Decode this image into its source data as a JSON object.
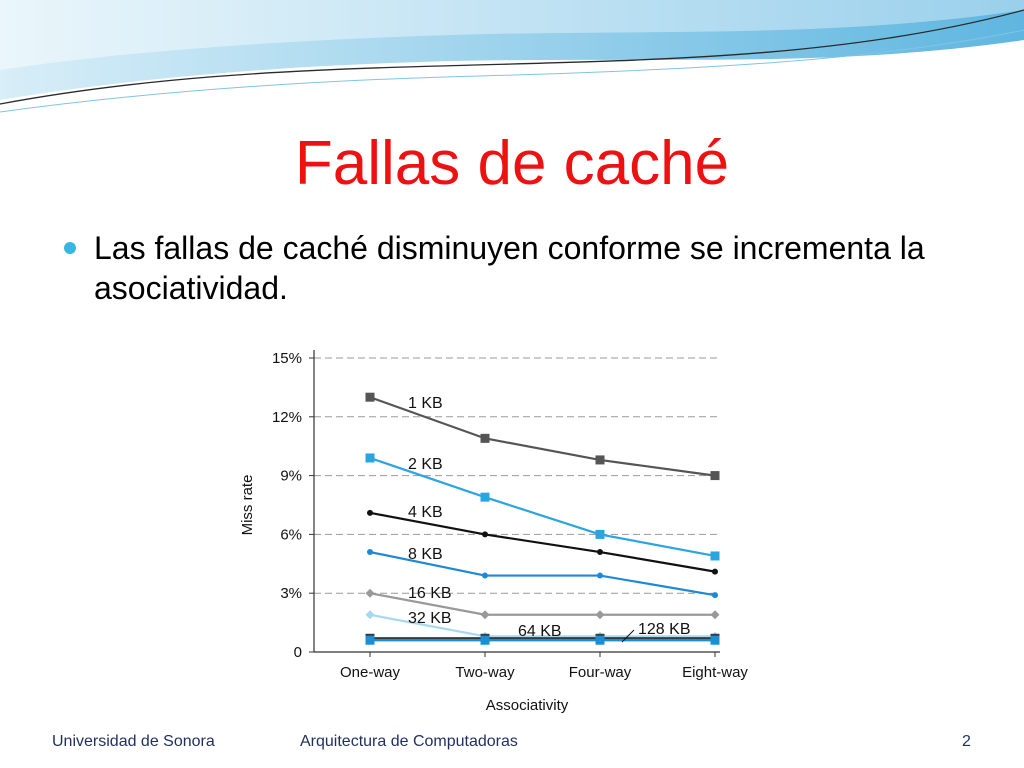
{
  "slide": {
    "title": "Fallas de caché",
    "bullet": "Las fallas de caché disminuyen conforme se incrementa la asociatividad.",
    "footer_left": "Universidad de Sonora",
    "footer_center": "Arquitectura de Computadoras",
    "page_number": "2"
  },
  "colors": {
    "title": "#ee1111",
    "bullet": "#36b6e2",
    "footer": "#1f2f5f"
  },
  "chart_data": {
    "type": "line",
    "xlabel": "Associativity",
    "ylabel": "Miss rate",
    "categories": [
      "One-way",
      "Two-way",
      "Four-way",
      "Eight-way"
    ],
    "ylim": [
      0,
      15
    ],
    "yticks": [
      "0",
      "3%",
      "6%",
      "9%",
      "12%",
      "15%"
    ],
    "grid": "horizontal-dashed",
    "series": [
      {
        "name": "1 KB",
        "values": [
          13.0,
          10.9,
          9.8,
          9.0
        ],
        "color": "#555555",
        "marker": "square"
      },
      {
        "name": "2 KB",
        "values": [
          9.9,
          7.9,
          6.0,
          4.9
        ],
        "color": "#2aa5e0",
        "marker": "square"
      },
      {
        "name": "4 KB",
        "values": [
          7.1,
          6.0,
          5.1,
          4.1
        ],
        "color": "#111111",
        "marker": "circle"
      },
      {
        "name": "8 KB",
        "values": [
          5.1,
          3.9,
          3.9,
          2.9
        ],
        "color": "#1e88d8",
        "marker": "circle"
      },
      {
        "name": "16 KB",
        "values": [
          3.0,
          1.9,
          1.9,
          1.9
        ],
        "color": "#999999",
        "marker": "diamond"
      },
      {
        "name": "32 KB",
        "values": [
          1.9,
          0.8,
          0.8,
          0.8
        ],
        "color": "#a8d8f0",
        "marker": "diamond"
      },
      {
        "name": "64 KB",
        "values": [
          0.7,
          0.7,
          0.7,
          0.7
        ],
        "color": "#3a3a3a",
        "marker": "square"
      },
      {
        "name": "128 KB",
        "values": [
          0.6,
          0.6,
          0.6,
          0.6
        ],
        "color": "#1a8fd8",
        "marker": "square"
      }
    ]
  }
}
